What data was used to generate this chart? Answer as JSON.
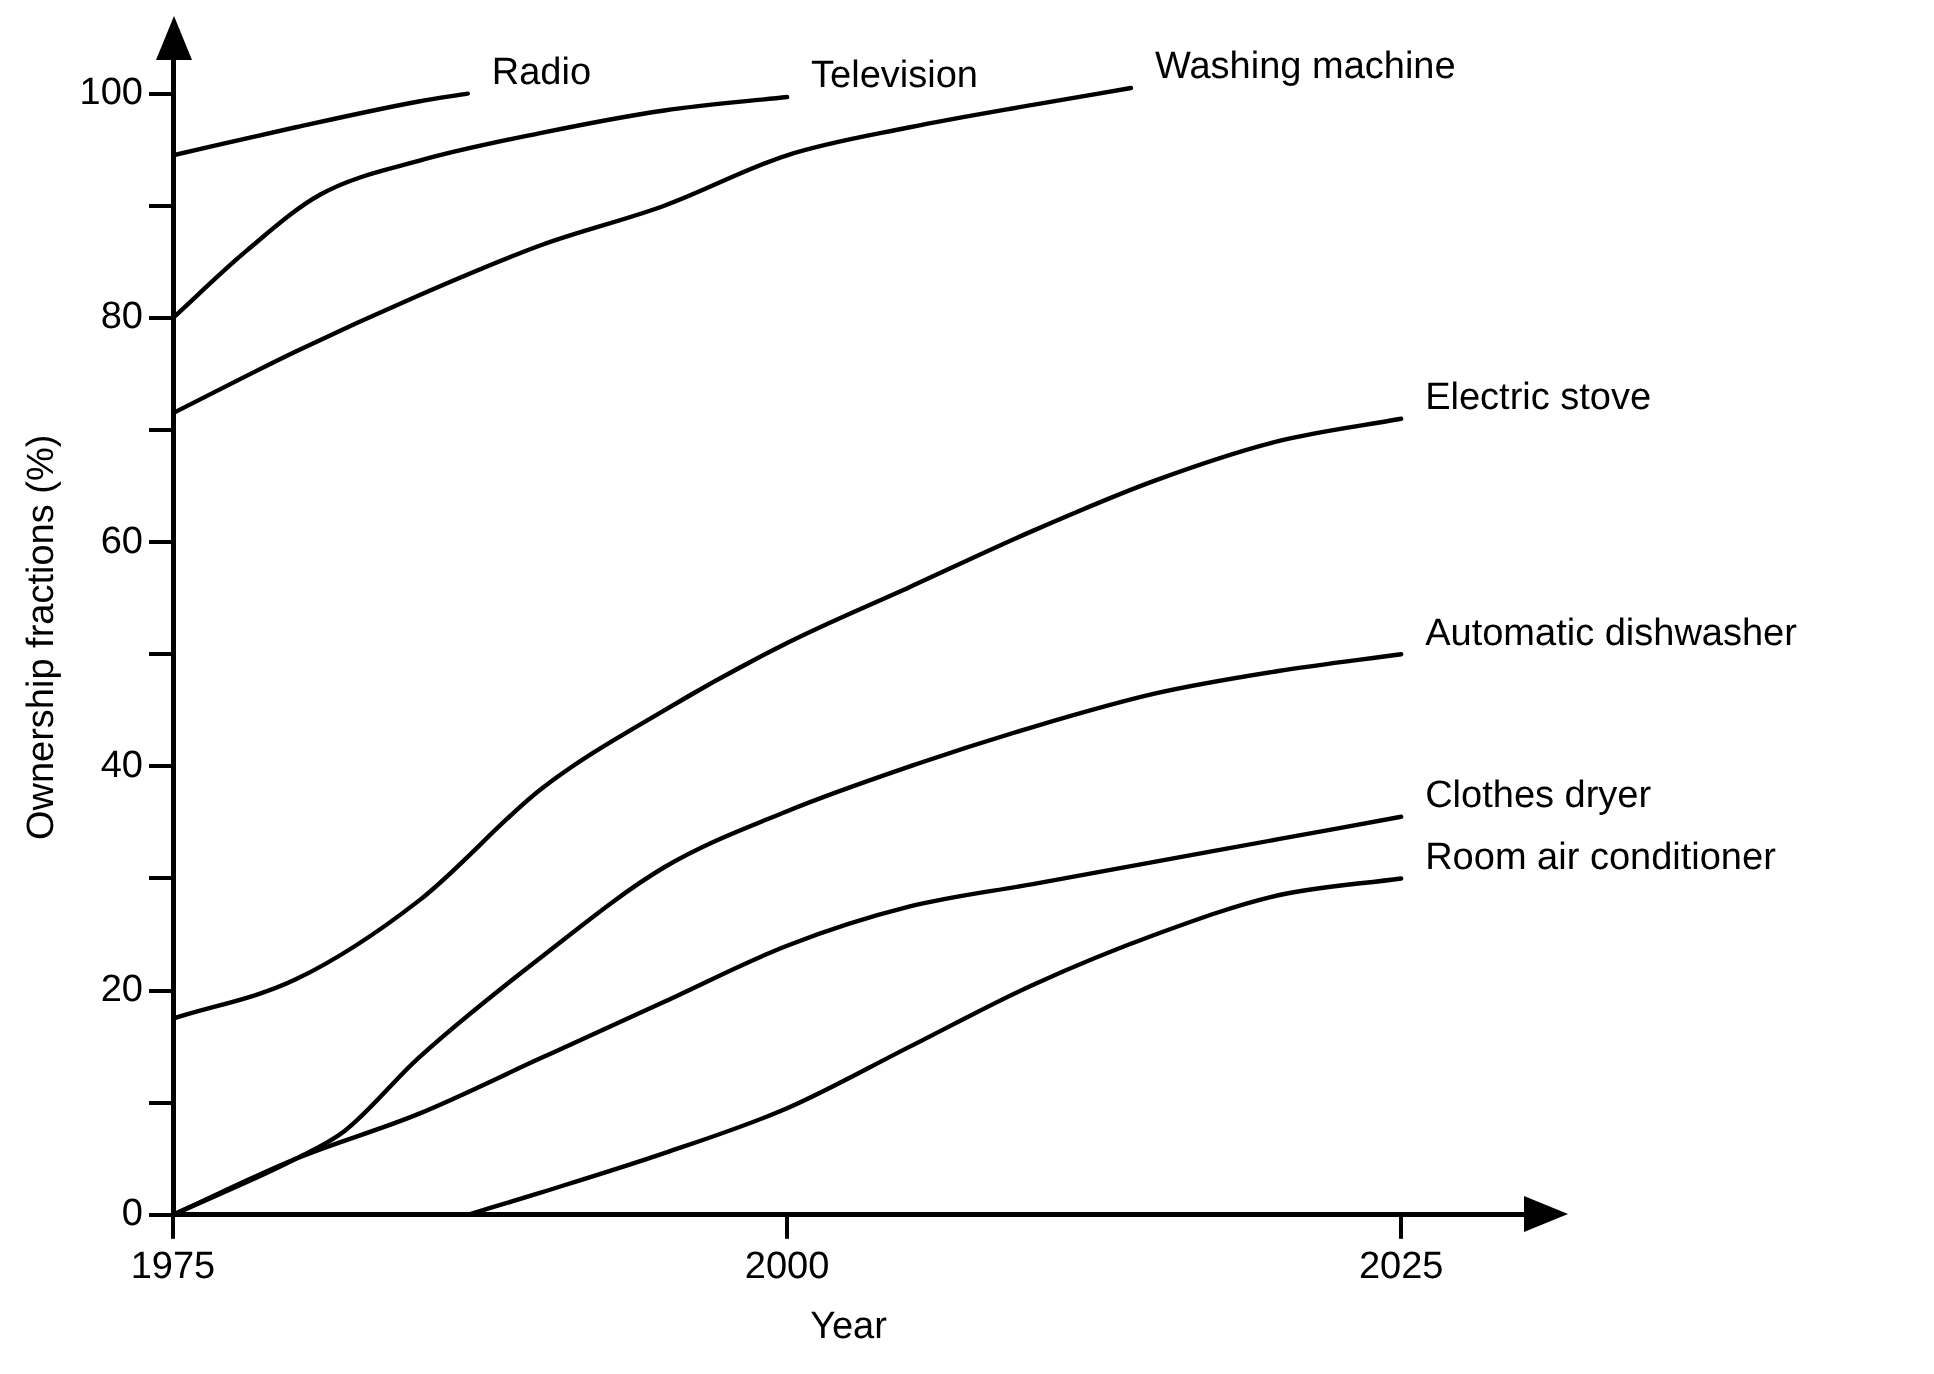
{
  "chart_data": {
    "type": "line",
    "xlabel": "Year",
    "ylabel": "Ownership fractions (%)",
    "xlim": [
      1975,
      2030
    ],
    "ylim": [
      0,
      103
    ],
    "xticks": [
      1975,
      2000,
      2025
    ],
    "yticks": [
      0,
      {
        "value": 10,
        "label": null
      },
      20,
      {
        "value": 30,
        "label": null
      },
      40,
      {
        "value": 50,
        "label": null
      },
      60,
      {
        "value": 70,
        "label": null
      },
      80,
      {
        "value": 90,
        "label": null
      },
      100
    ],
    "marker": "none",
    "line_style": "solid",
    "series": [
      {
        "name": "Radio",
        "color": "#000000",
        "x": [
          1975,
          1980,
          1985,
          1987
        ],
        "values": [
          94.5,
          97,
          99.3,
          100
        ]
      },
      {
        "name": "Television",
        "color": "#000000",
        "x": [
          1975,
          1978,
          1981,
          1985,
          1990,
          1995,
          2000
        ],
        "values": [
          80,
          86,
          91,
          94,
          96.5,
          98.5,
          99.7
        ]
      },
      {
        "name": "Washing machine",
        "color": "#000000",
        "x": [
          1975,
          1980,
          1985,
          1990,
          1995,
          2000,
          2005,
          2010,
          2014
        ],
        "values": [
          71.5,
          77,
          82,
          86.5,
          90,
          94.5,
          97,
          99,
          100.5
        ]
      },
      {
        "name": "Electric stove",
        "color": "#000000",
        "x": [
          1975,
          1980,
          1985,
          1990,
          1995,
          2000,
          2005,
          2010,
          2015,
          2020,
          2025
        ],
        "values": [
          17.5,
          21,
          28,
          38,
          45,
          51,
          56,
          61,
          65.5,
          69,
          71
        ]
      },
      {
        "name": "Automatic dishwasher",
        "color": "#000000",
        "x": [
          1975,
          1980,
          1982,
          1985,
          1990,
          1995,
          2000,
          2005,
          2010,
          2015,
          2020,
          2025
        ],
        "values": [
          0,
          5,
          7.5,
          14,
          23,
          31,
          36,
          40,
          43.5,
          46.5,
          48.5,
          50
        ]
      },
      {
        "name": "Clothes dryer",
        "color": "#000000",
        "x": [
          1975,
          1980,
          1985,
          1990,
          1995,
          2000,
          2005,
          2010,
          2015,
          2020,
          2025
        ],
        "values": [
          0,
          5,
          9,
          14,
          19,
          24,
          27.5,
          29.5,
          31.5,
          33.5,
          35.5
        ]
      },
      {
        "name": "Room air conditioner",
        "color": "#000000",
        "x": [
          1987,
          1990,
          1995,
          2000,
          2005,
          2010,
          2015,
          2020,
          2025
        ],
        "values": [
          0,
          2,
          5.5,
          9.5,
          15,
          20.5,
          25,
          28.5,
          30
        ]
      }
    ]
  }
}
